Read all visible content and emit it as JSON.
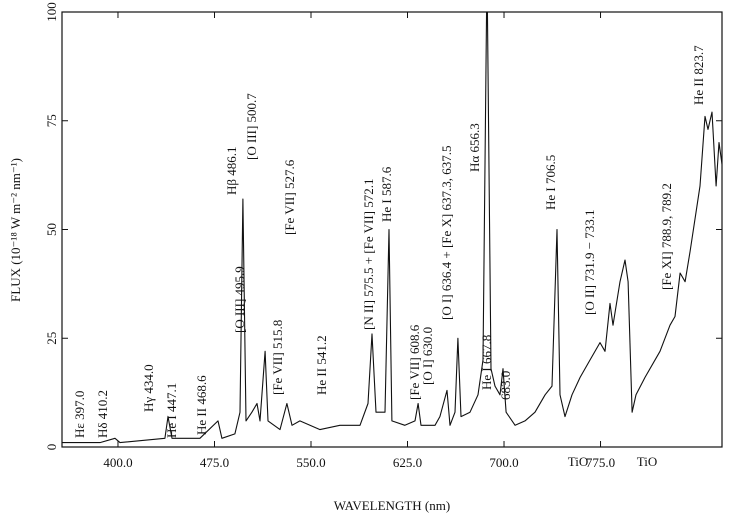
{
  "chart_data": {
    "type": "line",
    "x_label": "WAVELENGTH (nm)",
    "y_label": "FLUX  (10⁻¹⁸ W m⁻² nm⁻¹)",
    "xlim": [
      356.5,
      869.4
    ],
    "ylim": [
      0,
      100
    ],
    "xticks": [
      {
        "value": 400,
        "label": "400.0"
      },
      {
        "value": 475,
        "label": "475.0"
      },
      {
        "value": 550,
        "label": "550.0"
      },
      {
        "value": 625,
        "label": "625.0"
      },
      {
        "value": 700,
        "label": "700.0"
      },
      {
        "value": 775,
        "label": "775.0"
      }
    ],
    "yticks": [
      0,
      25,
      50,
      75,
      100
    ],
    "x": [
      356.5,
      386.0,
      397.7,
      401.6,
      436.5,
      438.9,
      442.0,
      463.7,
      477.7,
      480.8,
      490.9,
      494.8,
      497.1,
      499.5,
      504.1,
      508.0,
      510.4,
      514.3,
      516.6,
      525.9,
      531.3,
      535.2,
      541.4,
      557.0,
      572.5,
      588.1,
      594.3,
      597.4,
      600.5,
      607.5,
      610.6,
      612.9,
      623.0,
      630.8,
      633.2,
      635.5,
      646.4,
      650.2,
      655.7,
      658.0,
      661.9,
      664.2,
      666.6,
      673.6,
      679.8,
      683.7,
      686.8,
      689.9,
      693.0,
      696.9,
      699.2,
      701.6,
      708.6,
      716.3,
      724.1,
      731.9,
      737.3,
      741.2,
      743.5,
      747.4,
      752.8,
      759.1,
      766.8,
      774.6,
      778.5,
      782.4,
      784.7,
      790.1,
      794.0,
      796.4,
      799.5,
      802.6,
      809.6,
      821.2,
      829.0,
      832.9,
      836.8,
      840.7,
      844.6,
      852.3,
      856.2,
      858.5,
      861.6,
      864.8,
      867.1,
      869.4
    ],
    "series": [
      {
        "color": "#111111",
        "values": [
          1,
          1,
          2,
          1,
          2,
          7,
          2,
          2,
          6,
          2,
          3,
          8,
          57,
          6,
          8,
          10,
          6,
          22,
          6,
          4,
          10,
          5,
          6,
          4,
          5,
          5,
          10,
          26,
          8,
          8,
          50,
          6,
          5,
          6,
          10,
          5,
          5,
          7,
          13,
          5,
          8,
          25,
          7,
          8,
          12,
          20,
          110,
          18,
          14,
          12,
          18,
          8,
          5,
          6,
          8,
          12,
          14,
          50,
          12,
          7,
          12,
          16,
          20,
          24,
          22,
          33,
          28,
          38,
          43,
          38,
          8,
          12,
          16,
          22,
          28,
          30,
          40,
          38,
          45,
          60,
          76,
          73,
          77,
          60,
          70,
          65
        ]
      }
    ],
    "annotations": [
      "Hε 397.0",
      "Hδ 410.2",
      "Hγ 434.0",
      "He I 447.1",
      "He II 468.6",
      "Hβ 486.1",
      "[O III] 495.9",
      "[O III] 500.7",
      "[Fe VII] 515.8",
      "[Fe VII] 527.6",
      "He II 541.2",
      "[N II] 575.5 + [Fe VII] 572.1",
      "He I 587.6",
      "[Fe VII] 608.6",
      "[O I] 630.0",
      "[O I] 636.4 + [Fe X] 637.3, 637.5",
      "Hα 656.3",
      "He I 667.8",
      "683.0",
      "He I 706.5",
      "[O II] 731.9 − 733.1",
      "[Fe XI] 788.9, 789.2",
      "He II 823.7"
    ],
    "band_labels": [
      "TiO",
      "TiO"
    ]
  }
}
